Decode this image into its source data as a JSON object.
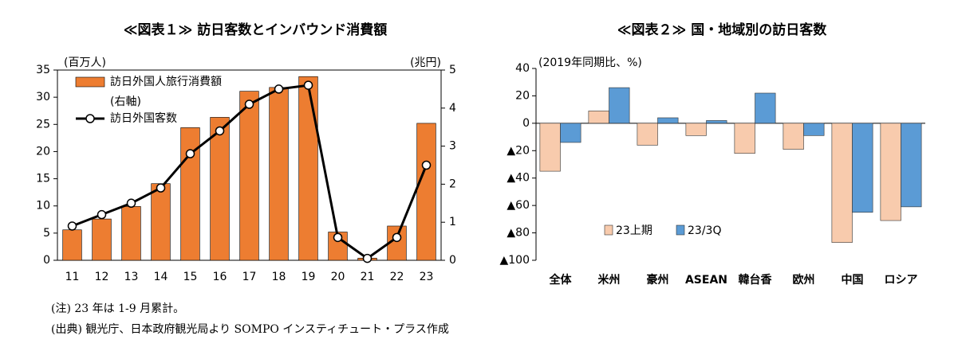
{
  "chart_data": [
    {
      "type": "bar_line",
      "title": "≪図表１≫ 訪日客数とインバウンド消費額",
      "y_label": "(百万人)",
      "y2_label": "(兆円)",
      "legend_note": "(右軸)",
      "categories": [
        "11",
        "12",
        "13",
        "14",
        "15",
        "16",
        "17",
        "18",
        "19",
        "20",
        "21",
        "22",
        "23"
      ],
      "series": [
        {
          "name": "訪日外国人旅行消費額",
          "type": "bar",
          "color": "#ed7d31",
          "values": [
            5.6,
            7.6,
            9.9,
            14.1,
            24.4,
            26.3,
            31.1,
            31.8,
            33.8,
            5.2,
            0.4,
            6.3,
            25.2
          ]
        },
        {
          "name": "訪日外国客数",
          "type": "line",
          "axis": "y2",
          "color": "#000000",
          "values": [
            0.9,
            1.2,
            1.5,
            1.9,
            2.8,
            3.4,
            4.1,
            4.5,
            4.6,
            0.6,
            0.05,
            0.6,
            2.5
          ]
        }
      ],
      "ylim": [
        0,
        35
      ],
      "yticks": [
        0,
        5,
        10,
        15,
        20,
        25,
        30,
        35
      ],
      "y2lim": [
        0,
        5
      ],
      "y2ticks": [
        0,
        1,
        2,
        3,
        4,
        5
      ]
    },
    {
      "type": "bar",
      "title": "≪図表２≫ 国・地域別の訪日客数",
      "y_label": "(2019年同期比、%)",
      "categories": [
        "全体",
        "米州",
        "豪州",
        "ASEAN",
        "韓台香",
        "欧州",
        "中国",
        "ロシア"
      ],
      "series": [
        {
          "name": "23上期",
          "color": "#f8cbad",
          "values": [
            -35,
            9,
            -16,
            -9,
            -22,
            -19,
            -87,
            -71
          ]
        },
        {
          "name": "23/3Q",
          "color": "#5b9bd5",
          "values": [
            -14,
            26,
            4,
            2,
            22,
            -9,
            -65,
            -61
          ]
        }
      ],
      "ylim": [
        -100,
        40
      ],
      "yticks": [
        40,
        20,
        0,
        {
          "value": -20,
          "label": "▲20"
        },
        {
          "value": -40,
          "label": "▲40"
        },
        {
          "value": -60,
          "label": "▲60"
        },
        {
          "value": -80,
          "label": "▲80"
        },
        {
          "value": -100,
          "label": "▲100"
        }
      ]
    }
  ],
  "notes": [
    "(注) 23 年は 1-9 月累計。",
    "(出典) 観光庁、日本政府観光局より SOMPO インスティチュート・プラス作成"
  ]
}
